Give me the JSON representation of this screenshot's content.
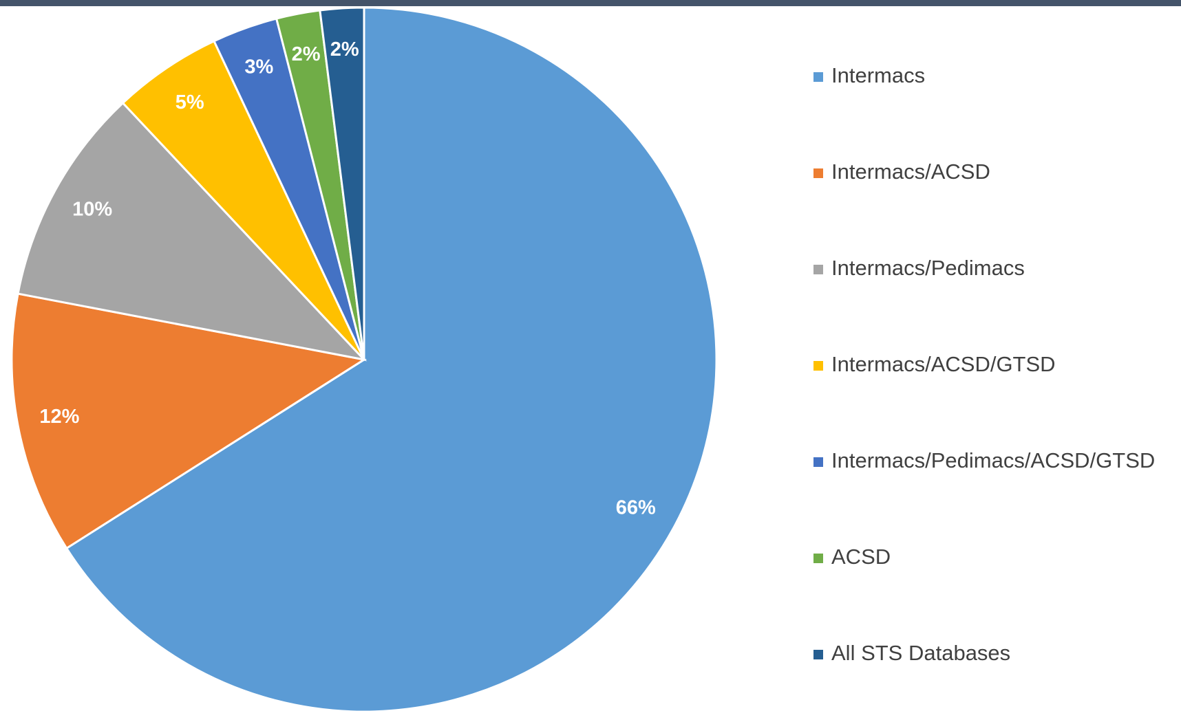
{
  "chart_data": {
    "type": "pie",
    "categories": [
      "Intermacs",
      "Intermacs/ACSD",
      "Intermacs/Pedimacs",
      "Intermacs/ACSD/GTSD",
      "Intermacs/Pedimacs/ACSD/GTSD",
      "ACSD",
      "All STS Databases"
    ],
    "values": [
      66,
      12,
      10,
      5,
      3,
      2,
      2
    ],
    "value_labels": [
      "66%",
      "12%",
      "10%",
      "5%",
      "3%",
      "2%",
      "2%"
    ],
    "colors": [
      "#5b9bd5",
      "#ed7d31",
      "#a5a5a5",
      "#ffc000",
      "#4472c4",
      "#70ad47",
      "#255e91"
    ],
    "legend": "right"
  }
}
